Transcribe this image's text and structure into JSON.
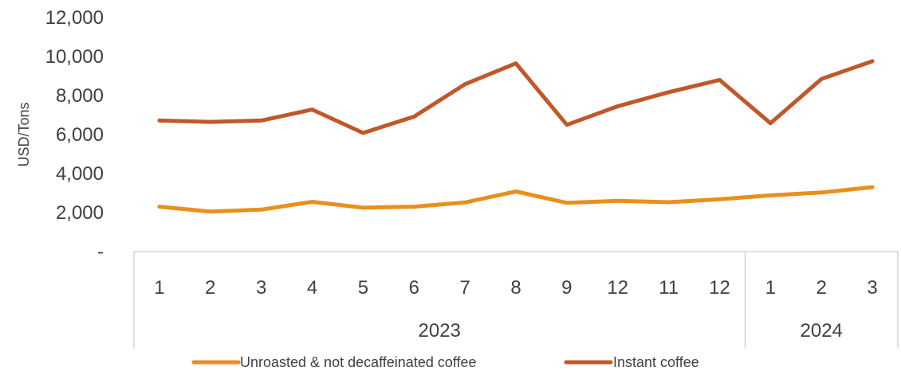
{
  "chart_data": {
    "type": "line",
    "title": "",
    "xlabel": "",
    "ylabel": "USD/Tons",
    "ylim": [
      0,
      12000
    ],
    "y_ticks": [
      {
        "value": 0,
        "label": "-"
      },
      {
        "value": 2000,
        "label": "2,000"
      },
      {
        "value": 4000,
        "label": "4,000"
      },
      {
        "value": 6000,
        "label": "6,000"
      },
      {
        "value": 8000,
        "label": "8,000"
      },
      {
        "value": 10000,
        "label": "10,000"
      },
      {
        "value": 12000,
        "label": "12,000"
      }
    ],
    "categories": [
      "1",
      "2",
      "3",
      "4",
      "5",
      "6",
      "7",
      "8",
      "9",
      "12",
      "11",
      "12",
      "1",
      "2",
      "3"
    ],
    "groups": [
      {
        "label": "2023",
        "count": 12
      },
      {
        "label": "2024",
        "count": 3
      }
    ],
    "grid": false,
    "legend_position": "bottom",
    "series": [
      {
        "name": "Unroasted & not decaffeinated coffee",
        "color": "#E8901C",
        "values": [
          2300,
          2050,
          2150,
          2550,
          2250,
          2300,
          2520,
          3080,
          2500,
          2600,
          2530,
          2680,
          2880,
          3030,
          3300
        ]
      },
      {
        "name": "Instant coffee",
        "color": "#C0582A",
        "values": [
          6720,
          6650,
          6720,
          7280,
          6080,
          6920,
          8580,
          9650,
          6500,
          7450,
          8170,
          8800,
          6580,
          8850,
          9760
        ]
      }
    ]
  }
}
